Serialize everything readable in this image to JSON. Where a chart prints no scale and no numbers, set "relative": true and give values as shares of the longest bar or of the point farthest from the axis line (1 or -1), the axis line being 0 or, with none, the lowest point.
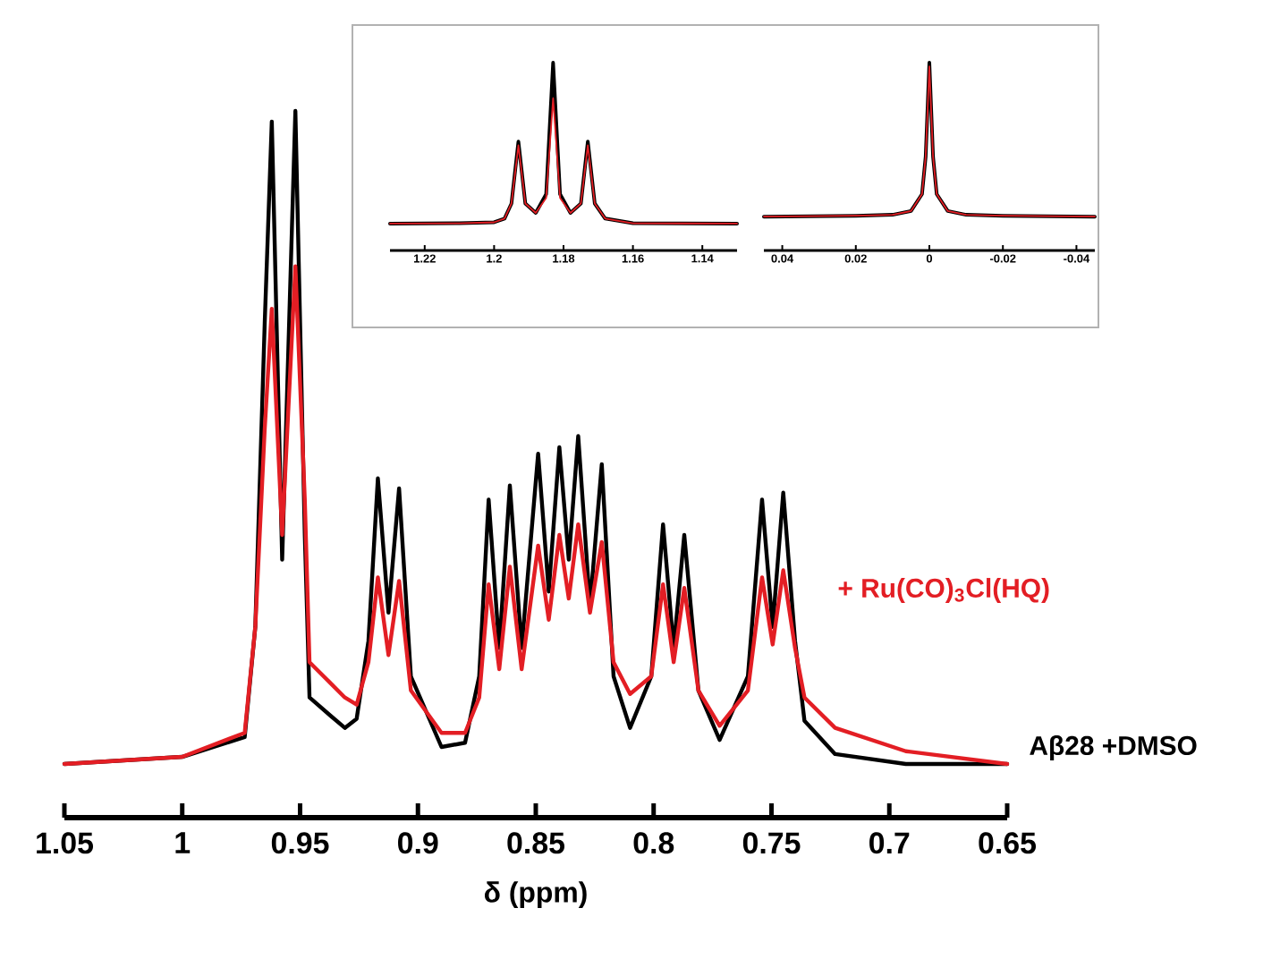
{
  "chart_data": [
    {
      "type": "line",
      "relative": true,
      "xlabel": "δ (ppm)",
      "xlim": [
        1.05,
        0.65
      ],
      "xticks": [
        1.05,
        1,
        0.95,
        0.9,
        0.85,
        0.8,
        0.75,
        0.7,
        0.65
      ],
      "x": [
        1.05,
        1.0,
        0.9735,
        0.969,
        0.965,
        0.962,
        0.9576,
        0.952,
        0.948,
        0.946,
        0.937,
        0.931,
        0.926,
        0.921,
        0.917,
        0.9125,
        0.908,
        0.903,
        0.89,
        0.88,
        0.874,
        0.87,
        0.8655,
        0.861,
        0.856,
        0.849,
        0.8445,
        0.84,
        0.836,
        0.832,
        0.827,
        0.822,
        0.817,
        0.81,
        0.801,
        0.796,
        0.7915,
        0.787,
        0.781,
        0.772,
        0.76,
        0.754,
        0.7495,
        0.745,
        0.74,
        0.736,
        0.723,
        0.693,
        0.65
      ],
      "series": [
        {
          "name": "Aβ28 +DMSO",
          "color": "#000000",
          "values": [
            0.076,
            0.086,
            0.114,
            0.27,
            0.7,
            0.985,
            0.365,
            1.0,
            0.4,
            0.17,
            0.144,
            0.127,
            0.14,
            0.25,
            0.48,
            0.29,
            0.466,
            0.2,
            0.1,
            0.106,
            0.2,
            0.45,
            0.24,
            0.47,
            0.24,
            0.515,
            0.32,
            0.524,
            0.365,
            0.54,
            0.3,
            0.5,
            0.2,
            0.127,
            0.2,
            0.415,
            0.24,
            0.4,
            0.18,
            0.11,
            0.2,
            0.45,
            0.27,
            0.46,
            0.25,
            0.137,
            0.09,
            0.076,
            0.076
          ]
        },
        {
          "name": "+ Ru(CO)$_{3}$Cl(HQ)",
          "color": "#e31e24",
          "values": [
            0.076,
            0.086,
            0.12,
            0.27,
            0.55,
            0.72,
            0.4,
            0.78,
            0.45,
            0.22,
            0.19,
            0.17,
            0.16,
            0.22,
            0.34,
            0.23,
            0.335,
            0.18,
            0.12,
            0.12,
            0.17,
            0.33,
            0.21,
            0.355,
            0.21,
            0.385,
            0.28,
            0.4,
            0.31,
            0.415,
            0.29,
            0.39,
            0.22,
            0.175,
            0.2,
            0.33,
            0.22,
            0.325,
            0.18,
            0.13,
            0.18,
            0.34,
            0.245,
            0.35,
            0.24,
            0.17,
            0.127,
            0.094,
            0.076
          ]
        }
      ]
    },
    {
      "type": "line",
      "relative": true,
      "xlim": [
        1.23,
        1.13
      ],
      "xticks": [
        1.22,
        1.2,
        1.18,
        1.16,
        1.14
      ],
      "x": [
        1.23,
        1.21,
        1.2,
        1.197,
        1.195,
        1.193,
        1.191,
        1.188,
        1.185,
        1.183,
        1.181,
        1.178,
        1.175,
        1.173,
        1.171,
        1.168,
        1.16,
        1.13
      ],
      "series": [
        {
          "color": "#000000",
          "values": [
            0.143,
            0.145,
            0.15,
            0.17,
            0.25,
            0.58,
            0.25,
            0.2,
            0.3,
            1.0,
            0.3,
            0.2,
            0.25,
            0.58,
            0.25,
            0.17,
            0.145,
            0.143
          ]
        },
        {
          "color": "#e31e24",
          "values": [
            0.143,
            0.145,
            0.15,
            0.17,
            0.25,
            0.56,
            0.25,
            0.2,
            0.28,
            0.81,
            0.28,
            0.2,
            0.25,
            0.56,
            0.25,
            0.17,
            0.145,
            0.143
          ]
        }
      ]
    },
    {
      "type": "line",
      "relative": true,
      "xlim": [
        0.045,
        -0.045
      ],
      "xticks": [
        0.04,
        0.02,
        0,
        -0.02,
        -0.04
      ],
      "x": [
        0.045,
        0.02,
        0.01,
        0.005,
        0.002,
        0.001,
        0,
        -0.001,
        -0.002,
        -0.005,
        -0.01,
        -0.02,
        -0.045
      ],
      "series": [
        {
          "color": "#000000",
          "values": [
            0.18,
            0.185,
            0.19,
            0.21,
            0.3,
            0.5,
            1.0,
            0.5,
            0.3,
            0.21,
            0.19,
            0.185,
            0.18
          ]
        },
        {
          "color": "#e31e24",
          "values": [
            0.18,
            0.185,
            0.19,
            0.21,
            0.3,
            0.5,
            0.98,
            0.5,
            0.3,
            0.21,
            0.19,
            0.185,
            0.18
          ]
        }
      ]
    }
  ]
}
